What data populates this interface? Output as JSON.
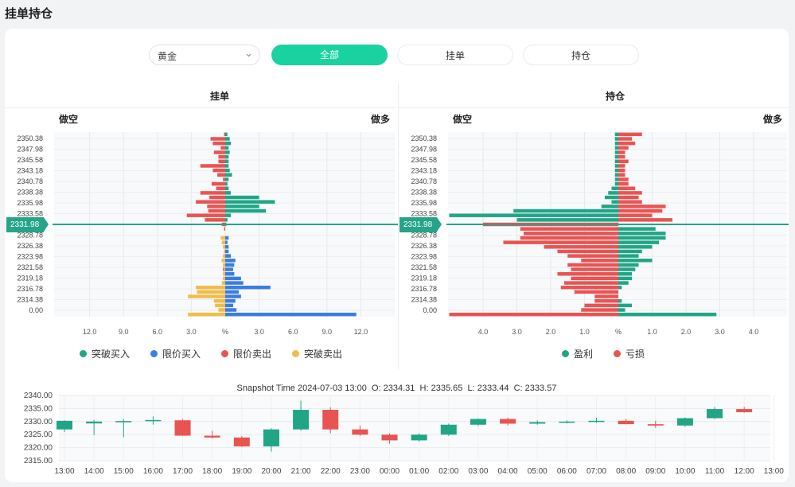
{
  "page": {
    "title": "挂单持仓"
  },
  "filters": {
    "instrument": "黄金",
    "tabs": [
      {
        "label": "全部",
        "active": true
      },
      {
        "label": "挂单",
        "active": false
      },
      {
        "label": "持仓",
        "active": false
      }
    ]
  },
  "colors": {
    "green": "#21a586",
    "red": "#e85452",
    "blue": "#3b7de0",
    "yellow": "#f0bd4a",
    "priceLine": "#26a48a"
  },
  "current_price": "2331.98",
  "orders_panel": {
    "title": "挂单",
    "left_label": "做空",
    "right_label": "做多",
    "legend": [
      {
        "label": "突破买入",
        "color": "#21a586"
      },
      {
        "label": "限价买入",
        "color": "#3b7de0"
      },
      {
        "label": "限价卖出",
        "color": "#e85452"
      },
      {
        "label": "突破卖出",
        "color": "#f0bd4a"
      }
    ]
  },
  "positions_panel": {
    "title": "持仓",
    "left_label": "做空",
    "right_label": "做多",
    "legend": [
      {
        "label": "盈利",
        "color": "#21a586"
      },
      {
        "label": "亏损",
        "color": "#e85452"
      }
    ]
  },
  "snapshot": {
    "label": "Snapshot Time",
    "time": "2024-07-03 13:00",
    "open": "O: 2334.31",
    "high": "H: 2335.65",
    "low": "L: 2333.44",
    "close": "C: 2333.57"
  },
  "chart_data": [
    {
      "type": "bar",
      "name": "orders",
      "price_labels": [
        "2350.38",
        "2347.98",
        "2345.58",
        "2343.18",
        "2340.78",
        "2338.38",
        "2335.98",
        "2333.58",
        "2331.18",
        "2328.78",
        "2326.38",
        "2323.98",
        "2321.58",
        "2319.18",
        "2316.78",
        "2314.38",
        "0.00"
      ],
      "x_ticks_left": [
        "12.0",
        "9.0",
        "6.0",
        "3.0"
      ],
      "x_center_tick": "%",
      "x_ticks_right": [
        "3.0",
        "6.0",
        "9.0",
        "12.0"
      ],
      "xlim": [
        -12,
        12
      ],
      "note_rows": "one row per 0.6 price step, top to bottom",
      "series": [
        {
          "name": "突破买入",
          "side": "right",
          "color": "#21a586",
          "values": [
            0.2,
            0.4,
            0.5,
            0.3,
            0.4,
            0.3,
            0.3,
            0.3,
            0.4,
            0.6,
            0.3,
            0.2,
            0.3,
            0.5,
            3.0,
            4.4,
            3.0,
            3.6,
            0.5,
            0.2,
            0.1,
            0,
            0,
            0,
            0,
            0,
            0,
            0,
            0,
            0,
            0,
            0,
            0,
            0,
            0,
            0,
            0,
            0,
            0,
            0,
            0
          ]
        },
        {
          "name": "限价卖出",
          "side": "left",
          "color": "#e85452",
          "values": [
            0.1,
            1.3,
            1.1,
            0.4,
            1.0,
            0.6,
            0.6,
            2.2,
            1.1,
            0.7,
            0.2,
            1.2,
            0.8,
            2.2,
            1.4,
            2.6,
            1.6,
            1.5,
            3.4,
            1.8,
            0.3,
            0.1,
            0,
            0.1,
            0.2,
            0.1,
            0.1,
            0.1,
            0.3,
            0.1,
            0.2,
            0,
            0.1,
            0.1,
            0.5,
            0.3,
            0.1,
            0.2,
            0.2,
            0,
            0
          ]
        },
        {
          "name": "限价买入",
          "side": "right",
          "color": "#3b7de0",
          "values": [
            0,
            0,
            0,
            0,
            0,
            0,
            0,
            0,
            0,
            0,
            0,
            0,
            0,
            0,
            0,
            0,
            0,
            0,
            0,
            0,
            0,
            0,
            0,
            0.3,
            0.2,
            0.3,
            0.3,
            0.5,
            0.9,
            0.8,
            0.7,
            0.8,
            1.4,
            1.6,
            4.0,
            1.2,
            1.4,
            0.9,
            0.7,
            1.0,
            11.6
          ]
        },
        {
          "name": "突破卖出",
          "side": "left",
          "color": "#f0bd4a",
          "values": [
            0,
            0,
            0,
            0,
            0,
            0,
            0,
            0,
            0,
            0,
            0,
            0,
            0,
            0,
            0,
            0,
            0,
            0,
            0,
            0,
            0,
            0,
            0,
            0.4,
            0.3,
            0.2,
            0.1,
            0.2,
            0.3,
            0.2,
            0.1,
            0.2,
            0.2,
            0.3,
            2.6,
            2.5,
            3.3,
            1.0,
            0.9,
            0.6,
            3.3
          ]
        }
      ]
    },
    {
      "type": "bar",
      "name": "positions",
      "price_labels": [
        "2350.38",
        "2347.98",
        "2345.58",
        "2343.18",
        "2340.78",
        "2338.38",
        "2335.98",
        "2333.58",
        "2331.18",
        "2328.78",
        "2326.38",
        "2323.98",
        "2321.58",
        "2319.18",
        "2316.78",
        "2314.38",
        "0.00"
      ],
      "x_ticks_left": [
        "4.0",
        "3.0",
        "2.0",
        "1.0"
      ],
      "x_center_tick": "%",
      "x_ticks_right": [
        "1.0",
        "2.0",
        "3.0",
        "4.0"
      ],
      "xlim": [
        -5,
        4.6
      ],
      "series": [
        {
          "name": "盈利",
          "side": "both",
          "color": "#21a586",
          "values": [
            -0.1,
            -0.1,
            -0.1,
            -0.1,
            -0.1,
            -0.1,
            -0.1,
            -0.1,
            -0.1,
            -0.1,
            -0.1,
            -0.1,
            -0.2,
            -0.3,
            -0.4,
            -0.2,
            -0.5,
            -3.1,
            -5.0,
            -3.0,
            0,
            1.1,
            1.4,
            1.4,
            1.2,
            1.0,
            0.7,
            0.6,
            1.0,
            0.6,
            0.5,
            0.4,
            0.4,
            0.3,
            0.1,
            0,
            0,
            0.1,
            0.4,
            0.2,
            2.9
          ]
        },
        {
          "name": "亏损",
          "side": "both",
          "color": "#e85452",
          "values": [
            0.7,
            0.4,
            0.5,
            0.3,
            0.2,
            0.2,
            0.3,
            0.2,
            0.2,
            0.2,
            0.3,
            0.3,
            0.5,
            0.7,
            0.6,
            0.7,
            1.4,
            1.3,
            1.0,
            1.6,
            -4.0,
            -2.9,
            -2.8,
            -2.9,
            -3.4,
            -2.2,
            -1.8,
            -1.5,
            -1.1,
            -1.5,
            -1.4,
            -1.8,
            -1.4,
            -1.6,
            -1.7,
            -1.3,
            -0.7,
            -0.7,
            -1.0,
            -1.1,
            -5.0
          ]
        }
      ]
    },
    {
      "type": "candlestick",
      "name": "price-history",
      "x": [
        "13:00",
        "14:00",
        "15:00",
        "16:00",
        "17:00",
        "18:00",
        "19:00",
        "20:00",
        "21:00",
        "22:00",
        "23:00",
        "00:00",
        "01:00",
        "02:00",
        "03:00",
        "04:00",
        "05:00",
        "06:00",
        "07:00",
        "08:00",
        "09:00",
        "10:00",
        "11:00",
        "12:00",
        "13:00"
      ],
      "y_ticks": [
        "2340.00",
        "2335.00",
        "2330.00",
        "2325.00",
        "2320.00",
        "2315.00"
      ],
      "ylim": [
        2315,
        2340
      ],
      "ohlc": [
        [
          2327.0,
          2330.5,
          2326.0,
          2330.3
        ],
        [
          2329.3,
          2330.6,
          2324.8,
          2330.0
        ],
        [
          2329.8,
          2331.0,
          2324.0,
          2330.2
        ],
        [
          2330.2,
          2332.0,
          2328.8,
          2330.6
        ],
        [
          2330.5,
          2331.0,
          2324.5,
          2324.6
        ],
        [
          2324.6,
          2326.5,
          2323.5,
          2323.9
        ],
        [
          2323.9,
          2324.5,
          2320.2,
          2320.5
        ],
        [
          2320.5,
          2327.5,
          2318.5,
          2327.0
        ],
        [
          2327.0,
          2338.0,
          2326.5,
          2334.5
        ],
        [
          2334.5,
          2335.5,
          2325.5,
          2327.0
        ],
        [
          2327.0,
          2328.5,
          2324.5,
          2325.0
        ],
        [
          2325.0,
          2325.5,
          2321.5,
          2322.8
        ],
        [
          2322.8,
          2325.5,
          2322.3,
          2325.0
        ],
        [
          2325.0,
          2329.2,
          2324.5,
          2328.8
        ],
        [
          2328.8,
          2331.2,
          2328.3,
          2331.0
        ],
        [
          2331.0,
          2331.5,
          2328.5,
          2329.2
        ],
        [
          2329.2,
          2330.5,
          2328.8,
          2329.8
        ],
        [
          2329.8,
          2330.5,
          2329.3,
          2330.0
        ],
        [
          2330.0,
          2331.5,
          2329.5,
          2330.3
        ],
        [
          2330.3,
          2331.0,
          2328.9,
          2329.0
        ],
        [
          2329.0,
          2330.3,
          2327.6,
          2328.5
        ],
        [
          2328.5,
          2331.6,
          2328.0,
          2331.3
        ],
        [
          2331.3,
          2335.6,
          2331.0,
          2334.8
        ],
        [
          2334.8,
          2335.6,
          2333.4,
          2333.6
        ]
      ]
    }
  ]
}
